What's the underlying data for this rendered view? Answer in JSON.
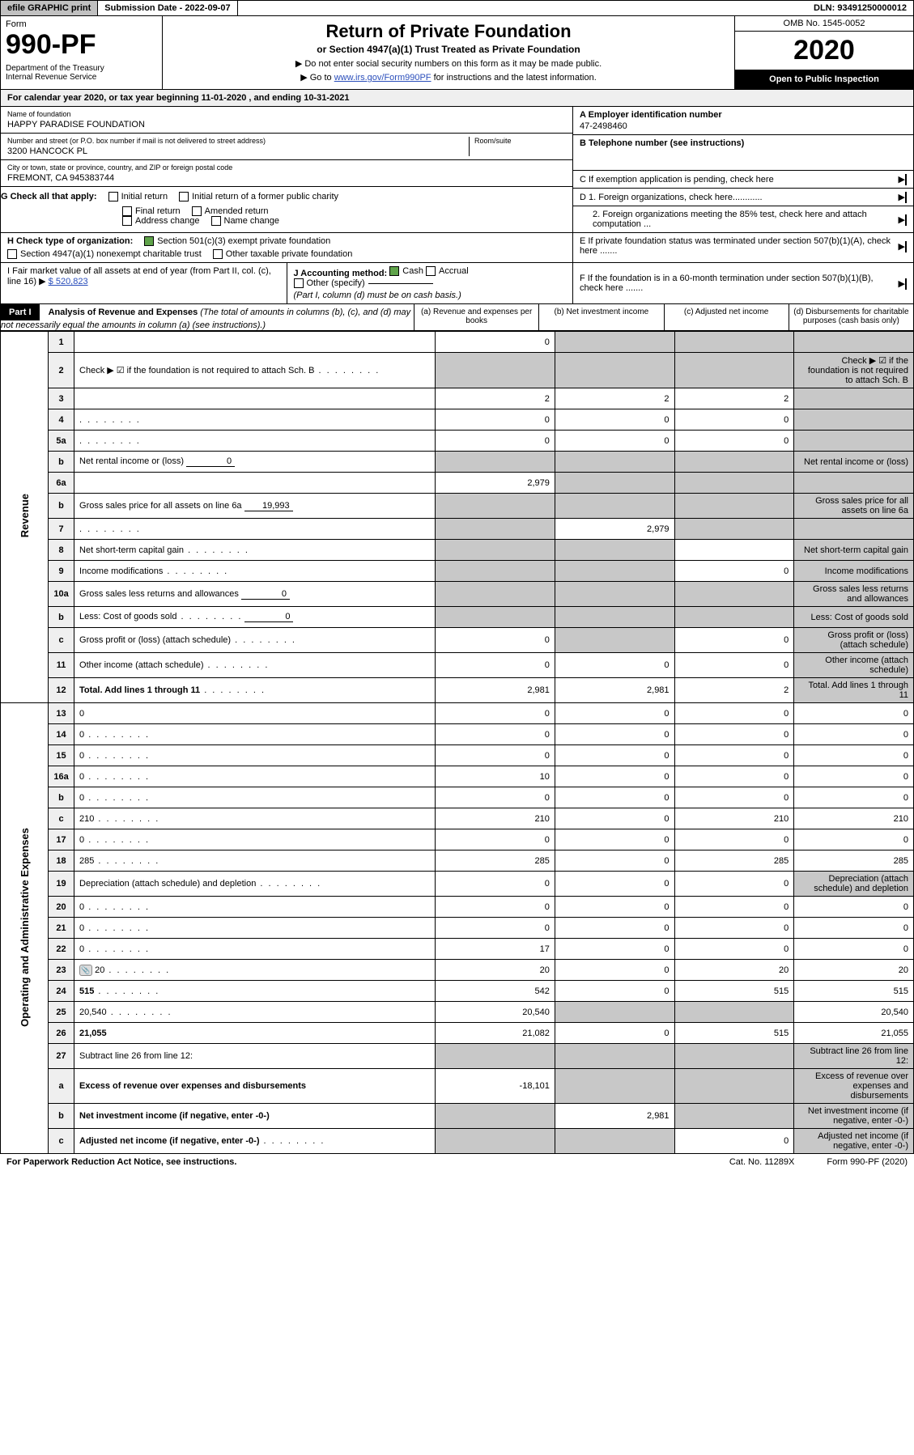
{
  "topbar": {
    "efile": "efile GRAPHIC print",
    "sub_label": "Submission Date - 2022-09-07",
    "dln": "DLN: 93491250000012"
  },
  "hdr": {
    "form_label": "Form",
    "form_num": "990-PF",
    "dept": "Department of the Treasury\nInternal Revenue Service",
    "title": "Return of Private Foundation",
    "sub": "or Section 4947(a)(1) Trust Treated as Private Foundation",
    "note1": "▶ Do not enter social security numbers on this form as it may be made public.",
    "note2": "▶ Go to www.irs.gov/Form990PF for instructions and the latest information.",
    "omb": "OMB No. 1545-0052",
    "year": "2020",
    "open": "Open to Public Inspection"
  },
  "calyear": "For calendar year 2020, or tax year beginning 11-01-2020                 , and ending 10-31-2021",
  "entity": {
    "name_label": "Name of foundation",
    "name": "HAPPY PARADISE FOUNDATION",
    "addr_label": "Number and street (or P.O. box number if mail is not delivered to street address)",
    "addr": "3200 HANCOCK PL",
    "room_label": "Room/suite",
    "city_label": "City or town, state or province, country, and ZIP or foreign postal code",
    "city": "FREMONT, CA  945383744",
    "a_label": "A Employer identification number",
    "a_val": "47-2498460",
    "b_label": "B Telephone number (see instructions)",
    "c_label": "C If exemption application is pending, check here",
    "d1": "D 1. Foreign organizations, check here............",
    "d2": "2. Foreign organizations meeting the 85% test, check here and attach computation ...",
    "e": "E  If private foundation status was terminated under section 507(b)(1)(A), check here .......",
    "f": "F  If the foundation is in a 60-month termination under section 507(b)(1)(B), check here .......",
    "g_label": "G Check all that apply:",
    "g_opts": [
      "Initial return",
      "Final return",
      "Address change",
      "Initial return of a former public charity",
      "Amended return",
      "Name change"
    ],
    "h_label": "H Check type of organization:",
    "h_opt1": "Section 501(c)(3) exempt private foundation",
    "h_opt2": "Section 4947(a)(1) nonexempt charitable trust",
    "h_opt3": "Other taxable private foundation",
    "i_label": "I Fair market value of all assets at end of year (from Part II, col. (c), line 16) ▶",
    "i_val": "$  520,823",
    "j_label": "J Accounting method:",
    "j_opts": [
      "Cash",
      "Accrual"
    ],
    "j_other": "Other (specify)",
    "j_note": "(Part I, column (d) must be on cash basis.)"
  },
  "part1": {
    "bar": "Part I",
    "title": "Analysis of Revenue and Expenses",
    "note": "(The total of amounts in columns (b), (c), and (d) may not necessarily equal the amounts in column (a) (see instructions).)",
    "cols": [
      "(a)  Revenue and expenses per books",
      "(b)  Net investment income",
      "(c)  Adjusted net income",
      "(d)  Disbursements for charitable purposes (cash basis only)"
    ],
    "rot_rev": "Revenue",
    "rot_exp": "Operating and Administrative Expenses"
  },
  "rows": [
    {
      "n": "1",
      "d": "",
      "a": "0",
      "b": "",
      "c": "",
      "shade": [
        "b",
        "c",
        "d"
      ]
    },
    {
      "n": "2",
      "d": "Check ▶ ☑ if the foundation is not required to attach Sch. B",
      "dots": true,
      "shade": [
        "a",
        "b",
        "c",
        "d"
      ]
    },
    {
      "n": "3",
      "d": "",
      "a": "2",
      "b": "2",
      "c": "2",
      "shade": [
        "d"
      ]
    },
    {
      "n": "4",
      "d": "",
      "dots": true,
      "a": "0",
      "b": "0",
      "c": "0",
      "shade": [
        "d"
      ]
    },
    {
      "n": "5a",
      "d": "",
      "dots": true,
      "a": "0",
      "b": "0",
      "c": "0",
      "shade": [
        "d"
      ]
    },
    {
      "n": "b",
      "d": "Net rental income or (loss)",
      "inline": "0",
      "shade": [
        "a",
        "b",
        "c",
        "d"
      ]
    },
    {
      "n": "6a",
      "d": "",
      "a": "2,979",
      "b": "",
      "c": "",
      "shade": [
        "b",
        "c",
        "d"
      ]
    },
    {
      "n": "b",
      "d": "Gross sales price for all assets on line 6a",
      "inline": "19,993",
      "shade": [
        "a",
        "b",
        "c",
        "d"
      ]
    },
    {
      "n": "7",
      "d": "",
      "dots": true,
      "a": "",
      "b": "2,979",
      "c": "",
      "shade": [
        "a",
        "c",
        "d"
      ]
    },
    {
      "n": "8",
      "d": "Net short-term capital gain",
      "dots": true,
      "shade": [
        "a",
        "b",
        "d"
      ]
    },
    {
      "n": "9",
      "d": "Income modifications",
      "dots": true,
      "c": "0",
      "shade": [
        "a",
        "b",
        "d"
      ]
    },
    {
      "n": "10a",
      "d": "Gross sales less returns and allowances",
      "inline": "0",
      "shade": [
        "a",
        "b",
        "c",
        "d"
      ]
    },
    {
      "n": "b",
      "d": "Less: Cost of goods sold",
      "dots": true,
      "inline": "0",
      "shade": [
        "a",
        "b",
        "c",
        "d"
      ]
    },
    {
      "n": "c",
      "d": "Gross profit or (loss) (attach schedule)",
      "dots": true,
      "a": "0",
      "c": "0",
      "shade": [
        "b",
        "d"
      ]
    },
    {
      "n": "11",
      "d": "Other income (attach schedule)",
      "dots": true,
      "a": "0",
      "b": "0",
      "c": "0",
      "shade": [
        "d"
      ]
    },
    {
      "n": "12",
      "d": "Total. Add lines 1 through 11",
      "dots": true,
      "bold": true,
      "a": "2,981",
      "b": "2,981",
      "c": "2",
      "shade": [
        "d"
      ]
    },
    {
      "n": "13",
      "d": "0",
      "a": "0",
      "b": "0",
      "c": "0"
    },
    {
      "n": "14",
      "d": "0",
      "dots": true,
      "a": "0",
      "b": "0",
      "c": "0"
    },
    {
      "n": "15",
      "d": "0",
      "dots": true,
      "a": "0",
      "b": "0",
      "c": "0"
    },
    {
      "n": "16a",
      "d": "0",
      "dots": true,
      "a": "10",
      "b": "0",
      "c": "0"
    },
    {
      "n": "b",
      "d": "0",
      "dots": true,
      "a": "0",
      "b": "0",
      "c": "0"
    },
    {
      "n": "c",
      "d": "210",
      "dots": true,
      "a": "210",
      "b": "0",
      "c": "210"
    },
    {
      "n": "17",
      "d": "0",
      "dots": true,
      "a": "0",
      "b": "0",
      "c": "0"
    },
    {
      "n": "18",
      "d": "285",
      "dots": true,
      "a": "285",
      "b": "0",
      "c": "285"
    },
    {
      "n": "19",
      "d": "Depreciation (attach schedule) and depletion",
      "dots": true,
      "a": "0",
      "b": "0",
      "c": "0",
      "shade": [
        "d"
      ]
    },
    {
      "n": "20",
      "d": "0",
      "dots": true,
      "a": "0",
      "b": "0",
      "c": "0"
    },
    {
      "n": "21",
      "d": "0",
      "dots": true,
      "a": "0",
      "b": "0",
      "c": "0"
    },
    {
      "n": "22",
      "d": "0",
      "dots": true,
      "a": "17",
      "b": "0",
      "c": "0"
    },
    {
      "n": "23",
      "d": "20",
      "dots": true,
      "icon": true,
      "a": "20",
      "b": "0",
      "c": "20"
    },
    {
      "n": "24",
      "d": "515",
      "dots": true,
      "bold": true,
      "a": "542",
      "b": "0",
      "c": "515"
    },
    {
      "n": "25",
      "d": "20,540",
      "dots": true,
      "a": "20,540",
      "shade": [
        "b",
        "c"
      ]
    },
    {
      "n": "26",
      "d": "21,055",
      "bold": true,
      "a": "21,082",
      "b": "0",
      "c": "515"
    },
    {
      "n": "27",
      "d": "Subtract line 26 from line 12:",
      "shade": [
        "a",
        "b",
        "c",
        "d"
      ]
    },
    {
      "n": "a",
      "d": "Excess of revenue over expenses and disbursements",
      "bold": true,
      "a": "-18,101",
      "shade": [
        "b",
        "c",
        "d"
      ]
    },
    {
      "n": "b",
      "d": "Net investment income (if negative, enter -0-)",
      "bold": true,
      "b": "2,981",
      "shade": [
        "a",
        "c",
        "d"
      ]
    },
    {
      "n": "c",
      "d": "Adjusted net income (if negative, enter -0-)",
      "dots": true,
      "bold": true,
      "c": "0",
      "shade": [
        "a",
        "b",
        "d"
      ]
    }
  ],
  "footer": {
    "left": "For Paperwork Reduction Act Notice, see instructions.",
    "mid": "Cat. No. 11289X",
    "right": "Form 990-PF (2020)"
  },
  "colors": {
    "shade": "#c8c8c8",
    "link": "#2a4ebb",
    "check": "#5fa34a"
  }
}
